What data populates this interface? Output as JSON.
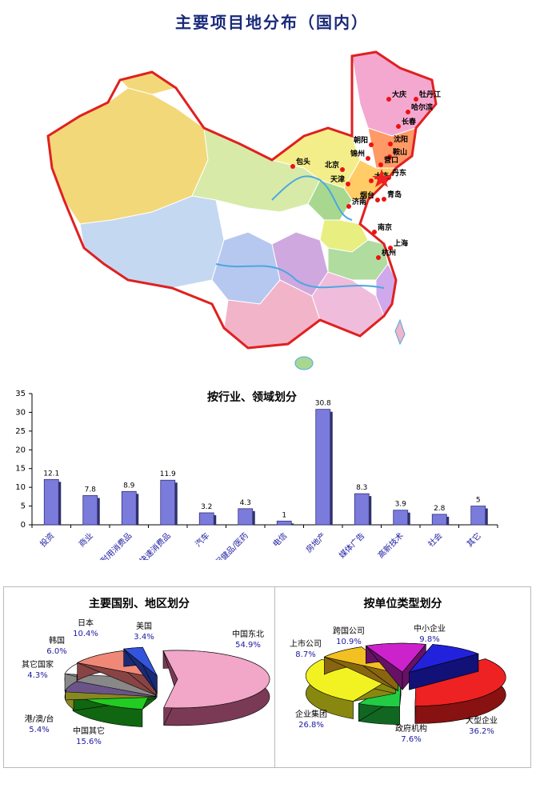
{
  "map": {
    "title": "主要项目地分布（国内）",
    "cities": [
      "大庆",
      "牡丹江",
      "哈尔滨",
      "长春",
      "朝阳",
      "沈阳",
      "锦州",
      "鞍山",
      "营口",
      "丹东",
      "包头",
      "北京",
      "天津",
      "大连",
      "济南",
      "烟台",
      "青岛",
      "南京",
      "上海",
      "杭州"
    ]
  },
  "chart_data": [
    {
      "type": "bar",
      "title": "按行业、领域划分",
      "categories": [
        "投资",
        "商业",
        "耐用消费品",
        "快速消费品",
        "汽车",
        "保健品/医药",
        "电信",
        "房地产",
        "媒体广告",
        "高新技术",
        "社会",
        "其它"
      ],
      "values": [
        12.1,
        7.8,
        8.9,
        11.9,
        3.2,
        4.3,
        1,
        30.8,
        8.3,
        3.9,
        2.8,
        5
      ],
      "value_labels": [
        "12.1",
        "7.8",
        "8.9",
        "11.9",
        "3.2",
        "4.3",
        "1",
        "30.8",
        "8.3",
        "3.9",
        "2.8",
        "5"
      ],
      "ylim": [
        0,
        35
      ],
      "yticks": [
        "0",
        "5",
        "10",
        "15",
        "20",
        "25",
        "30",
        "35"
      ],
      "xlabel": "",
      "ylabel": "",
      "color": "#7b7bdc"
    },
    {
      "type": "pie",
      "title": "主要国别、地区划分",
      "slices": [
        {
          "name": "中国东北",
          "pct": "54.9%",
          "value": 54.9,
          "color": "#f2a6c8"
        },
        {
          "name": "中国其它",
          "pct": "15.6%",
          "value": 15.6,
          "color": "#22cc22"
        },
        {
          "name": "港/澳/台",
          "pct": "5.4%",
          "value": 5.4,
          "color": "#ffff66"
        },
        {
          "name": "其它国家",
          "pct": "4.3%",
          "value": 4.3,
          "color": "#c8a8f0"
        },
        {
          "name": "韩国",
          "pct": "6.0%",
          "value": 6.0,
          "color": "#ffffff"
        },
        {
          "name": "日本",
          "pct": "10.4%",
          "value": 10.4,
          "color": "#f08878"
        },
        {
          "name": "美国",
          "pct": "3.4%",
          "value": 3.4,
          "color": "#3355dd"
        }
      ]
    },
    {
      "type": "pie",
      "title": "按单位类型划分",
      "slices": [
        {
          "name": "大型企业",
          "pct": "36.2%",
          "value": 36.2,
          "color": "#ee2222"
        },
        {
          "name": "政府机构",
          "pct": "7.6%",
          "value": 7.6,
          "color": "#22cc44"
        },
        {
          "name": "企业集团",
          "pct": "26.8%",
          "value": 26.8,
          "color": "#f2f222"
        },
        {
          "name": "上市公司",
          "pct": "8.7%",
          "value": 8.7,
          "color": "#f2c020"
        },
        {
          "name": "跨国公司",
          "pct": "10.9%",
          "value": 10.9,
          "color": "#cc22cc"
        },
        {
          "name": "中小企业",
          "pct": "9.8%",
          "value": 9.8,
          "color": "#2222dd"
        }
      ]
    }
  ]
}
